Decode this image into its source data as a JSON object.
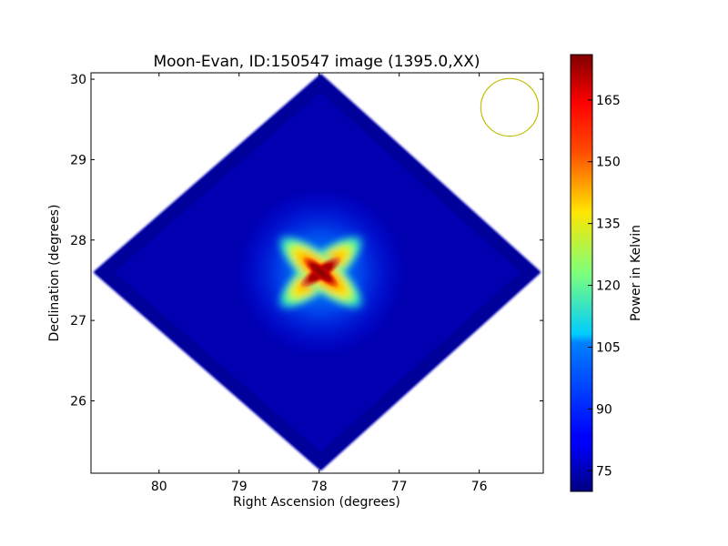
{
  "chart_data": {
    "type": "heatmap",
    "title": "Moon-Evan, ID:150547 image (1395.0,XX)",
    "xlabel": "Right Ascension (degrees)",
    "ylabel": "Declination (degrees)",
    "x_ticks": [
      "80",
      "79",
      "78",
      "77",
      "76"
    ],
    "y_ticks": [
      "26",
      "27",
      "28",
      "29",
      "30"
    ],
    "xlim": [
      80.85,
      75.2
    ],
    "ylim": [
      25.1,
      30.08
    ],
    "x_axis_inverted": true,
    "grid": false,
    "colormap": "jet",
    "colorbar": {
      "label": "Power in Kelvin",
      "range": [
        70,
        176
      ],
      "ticks": [
        "75",
        "90",
        "105",
        "120",
        "135",
        "150",
        "165"
      ]
    },
    "footprint": {
      "shape": "diamond",
      "center_ra": 77.98,
      "center_dec": 27.6,
      "vertices": [
        {
          "ra": 77.98,
          "dec": 30.05
        },
        {
          "ra": 75.25,
          "dec": 27.6
        },
        {
          "ra": 77.98,
          "dec": 25.15
        },
        {
          "ra": 80.8,
          "dec": 27.6
        }
      ],
      "background_level": 75
    },
    "source": {
      "ra": 77.98,
      "dec": 27.6,
      "peak_power": 172
    },
    "beam_marker": {
      "shape": "circle",
      "center_ra": 75.62,
      "center_dec": 29.65,
      "radius_deg": 0.36,
      "color": "#bfbf00"
    }
  }
}
